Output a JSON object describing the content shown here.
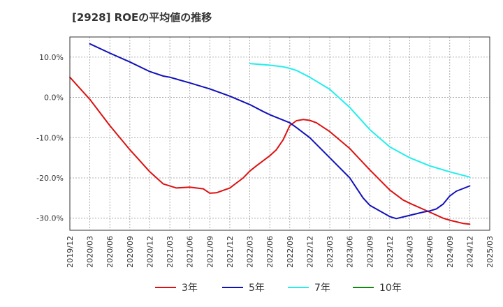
{
  "chart_data": {
    "type": "line",
    "title": "[2928]  ROEの平均値の推移",
    "xlabel": "",
    "ylabel": "",
    "ylim": [
      -33,
      15
    ],
    "yticks": [
      10,
      0,
      -10,
      -20,
      -30
    ],
    "ytick_labels": [
      "10.0%",
      "0.0%",
      "-10.0%",
      "-20.0%",
      "-30.0%"
    ],
    "x_index_range": [
      0,
      22
    ],
    "categories": [
      "2019/12",
      "2020/03",
      "2020/06",
      "2020/09",
      "2020/12",
      "2021/03",
      "2021/06",
      "2021/09",
      "2021/12",
      "2022/03",
      "2022/06",
      "2022/09",
      "2022/12",
      "2023/03",
      "2023/06",
      "2023/09",
      "2023/12",
      "2024/03",
      "2024/06",
      "2024/09",
      "2024/12",
      "2025/03"
    ],
    "grid": true,
    "legend_position": "bottom",
    "series": [
      {
        "name": "3年",
        "color": "#dd1111",
        "points": [
          [
            0,
            5
          ],
          [
            1,
            -0.5
          ],
          [
            2,
            -7
          ],
          [
            3,
            -13
          ],
          [
            4,
            -18.5
          ],
          [
            4.67,
            -21.5
          ],
          [
            5.33,
            -22.5
          ],
          [
            6,
            -22.3
          ],
          [
            6.67,
            -22.7
          ],
          [
            7,
            -23.8
          ],
          [
            7.33,
            -23.7
          ],
          [
            8,
            -22.5
          ],
          [
            8.67,
            -20
          ],
          [
            9,
            -18.3
          ],
          [
            9.33,
            -17
          ],
          [
            10,
            -14.5
          ],
          [
            10.33,
            -13
          ],
          [
            10.67,
            -10.5
          ],
          [
            11,
            -7
          ],
          [
            11.33,
            -5.8
          ],
          [
            11.67,
            -5.5
          ],
          [
            12,
            -5.7
          ],
          [
            12.33,
            -6.3
          ],
          [
            13,
            -8.5
          ],
          [
            14,
            -12.7
          ],
          [
            15,
            -18
          ],
          [
            16,
            -23
          ],
          [
            16.67,
            -25.5
          ],
          [
            17,
            -26.3
          ],
          [
            18,
            -28.5
          ],
          [
            18.67,
            -30
          ],
          [
            19,
            -30.5
          ],
          [
            19.67,
            -31.3
          ],
          [
            20,
            -31.5
          ]
        ]
      },
      {
        "name": "5年",
        "color": "#1111bb",
        "points": [
          [
            1,
            13.3
          ],
          [
            2,
            11
          ],
          [
            3,
            8.8
          ],
          [
            4,
            6.4
          ],
          [
            4.67,
            5.3
          ],
          [
            5,
            5
          ],
          [
            6,
            3.6
          ],
          [
            7,
            2.1
          ],
          [
            8,
            0.3
          ],
          [
            9,
            -1.8
          ],
          [
            9.67,
            -3.5
          ],
          [
            10,
            -4.3
          ],
          [
            11,
            -6.3
          ],
          [
            11.33,
            -7.5
          ],
          [
            12,
            -10
          ],
          [
            13,
            -15
          ],
          [
            14,
            -20
          ],
          [
            14.67,
            -25
          ],
          [
            15,
            -26.8
          ],
          [
            16,
            -29.6
          ],
          [
            16.33,
            -30.1
          ],
          [
            17,
            -29.3
          ],
          [
            17.67,
            -28.5
          ],
          [
            18,
            -28.2
          ],
          [
            18.33,
            -27.7
          ],
          [
            18.67,
            -26.5
          ],
          [
            19,
            -24.5
          ],
          [
            19.33,
            -23.3
          ],
          [
            20,
            -22
          ]
        ]
      },
      {
        "name": "7年",
        "color": "#22eeee",
        "points": [
          [
            9,
            8.4
          ],
          [
            10,
            8
          ],
          [
            10.67,
            7.6
          ],
          [
            11,
            7.2
          ],
          [
            11.33,
            6.7
          ],
          [
            12,
            5
          ],
          [
            13,
            2
          ],
          [
            14,
            -2.5
          ],
          [
            15,
            -8
          ],
          [
            16,
            -12.3
          ],
          [
            17,
            -15
          ],
          [
            18,
            -17
          ],
          [
            19,
            -18.5
          ],
          [
            20,
            -19.8
          ]
        ]
      },
      {
        "name": "10年",
        "color": "#118811",
        "points": []
      }
    ]
  }
}
